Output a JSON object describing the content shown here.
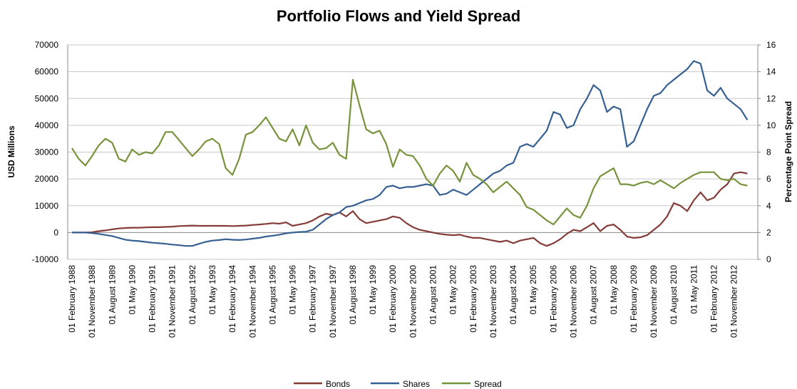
{
  "chart_data": {
    "type": "line",
    "title": "Portfolio Flows and Yield Spread",
    "y_label": "USD Millions",
    "y2_label": "Percentage Point Spread",
    "categories": [
      "01 February 1988",
      null,
      null,
      "01 November 1988",
      null,
      null,
      "01 August 1989",
      null,
      null,
      "01 May 1990",
      null,
      null,
      "01 February 1991",
      null,
      null,
      "01 November 1991",
      null,
      null,
      "01 August 1992",
      null,
      null,
      "01 May 1993",
      null,
      null,
      "01 February 1994",
      null,
      null,
      "01 November 1994",
      null,
      null,
      "01 August 1995",
      null,
      null,
      "01 May 1996",
      null,
      null,
      "01 February 1997",
      null,
      null,
      "01 November 1997",
      null,
      null,
      "01 August 1998",
      null,
      null,
      "01 May 1999",
      null,
      null,
      "01 February 2000",
      null,
      null,
      "01 November 2000",
      null,
      null,
      "01 August 2001",
      null,
      null,
      "01 May 2002",
      null,
      null,
      "01 February 2003",
      null,
      null,
      "01 November 2003",
      null,
      null,
      "01 August 2004",
      null,
      null,
      "01 May 2005",
      null,
      null,
      "01 February 2006",
      null,
      null,
      "01 November 2006",
      null,
      null,
      "01 August 2007",
      null,
      null,
      "01 May 2008",
      null,
      null,
      "01 February 2009",
      null,
      null,
      "01 November 2009",
      null,
      null,
      "01 August 2010",
      null,
      null,
      "01 May 2011",
      null,
      null,
      "01 February 2012",
      null,
      null,
      "01 November 2012",
      null,
      null
    ],
    "series": [
      {
        "name": "Bonds",
        "color": "#843c39",
        "values": [
          0,
          0,
          0,
          100,
          500,
          800,
          1200,
          1500,
          1700,
          1800,
          1800,
          1900,
          2000,
          2000,
          2100,
          2200,
          2400,
          2500,
          2600,
          2500,
          2500,
          2500,
          2500,
          2500,
          2400,
          2500,
          2600,
          2800,
          3000,
          3200,
          3500,
          3300,
          3800,
          2500,
          3000,
          3500,
          4500,
          6000,
          7000,
          6500,
          7500,
          6000,
          8000,
          5000,
          3500,
          4000,
          4500,
          5000,
          6000,
          5500,
          3500,
          2000,
          1000,
          500,
          0,
          -500,
          -800,
          -1000,
          -800,
          -1500,
          -2000,
          -2000,
          -2500,
          -3000,
          -3500,
          -3000,
          -4000,
          -3000,
          -2500,
          -2000,
          -4000,
          -5000,
          -4000,
          -2500,
          -500,
          1000,
          500,
          2000,
          3500,
          500,
          2500,
          3000,
          1000,
          -1500,
          -2000,
          -1800,
          -1000,
          1000,
          3000,
          6000,
          11000,
          10000,
          8000,
          12000,
          15000,
          12000,
          13000,
          16000,
          18000,
          22000,
          22500,
          22000
        ]
      },
      {
        "name": "Shares",
        "color": "#376092",
        "values": [
          0,
          0,
          0,
          -200,
          -500,
          -900,
          -1300,
          -2000,
          -2700,
          -3000,
          -3200,
          -3500,
          -3800,
          -4000,
          -4200,
          -4500,
          -4700,
          -5000,
          -5000,
          -4200,
          -3500,
          -3000,
          -2800,
          -2500,
          -2700,
          -2800,
          -2600,
          -2300,
          -2000,
          -1500,
          -1200,
          -800,
          -300,
          0,
          200,
          300,
          1000,
          3000,
          5000,
          6500,
          7500,
          9500,
          10000,
          11000,
          12000,
          12500,
          14000,
          17000,
          17500,
          16500,
          17000,
          17000,
          17500,
          18000,
          17500,
          14000,
          14500,
          16000,
          15000,
          14000,
          16000,
          18000,
          20000,
          22000,
          23000,
          25000,
          26000,
          32000,
          33000,
          32000,
          35000,
          38000,
          45000,
          44000,
          39000,
          40000,
          46000,
          50000,
          55000,
          53000,
          45000,
          47000,
          46000,
          32000,
          34000,
          40000,
          46000,
          51000,
          52000,
          55000,
          57000,
          59000,
          61000,
          64000,
          63000,
          53000,
          51000,
          54000,
          50000,
          48000,
          46000,
          42000
        ]
      },
      {
        "name": "Spread",
        "color": "#77933c",
        "axis": "y2",
        "values": [
          8.3,
          7.5,
          7.0,
          7.7,
          8.5,
          9.0,
          8.7,
          7.5,
          7.3,
          8.2,
          7.8,
          8.0,
          7.9,
          8.5,
          9.5,
          9.5,
          8.9,
          8.3,
          7.7,
          8.2,
          8.8,
          9.0,
          8.6,
          6.8,
          6.3,
          7.5,
          9.3,
          9.5,
          10.0,
          10.6,
          9.8,
          9.0,
          8.8,
          9.7,
          8.5,
          10.0,
          8.7,
          8.2,
          8.3,
          8.7,
          7.8,
          7.5,
          13.4,
          11.5,
          9.7,
          9.4,
          9.6,
          8.6,
          6.9,
          8.2,
          7.8,
          7.7,
          7.0,
          6.0,
          5.5,
          6.4,
          7.0,
          6.6,
          5.8,
          7.2,
          6.3,
          6.0,
          5.6,
          5.0,
          5.4,
          5.8,
          5.3,
          4.8,
          3.9,
          3.7,
          3.3,
          2.9,
          2.6,
          3.2,
          3.8,
          3.3,
          3.1,
          4.0,
          5.3,
          6.2,
          6.5,
          6.8,
          5.6,
          5.6,
          5.5,
          5.7,
          5.8,
          5.6,
          5.9,
          5.6,
          5.3,
          5.7,
          6.0,
          6.3,
          6.5,
          6.5,
          6.5,
          6.0,
          5.9,
          6.0,
          5.6,
          5.5
        ]
      }
    ],
    "ylim": [
      -10000,
      70000
    ],
    "yticks": [
      -10000,
      0,
      10000,
      20000,
      30000,
      40000,
      50000,
      60000,
      70000
    ],
    "y2lim": [
      0,
      16
    ],
    "y2ticks": [
      0,
      2,
      4,
      6,
      8,
      10,
      12,
      14,
      16
    ],
    "grid": true,
    "legend": "bottom"
  }
}
